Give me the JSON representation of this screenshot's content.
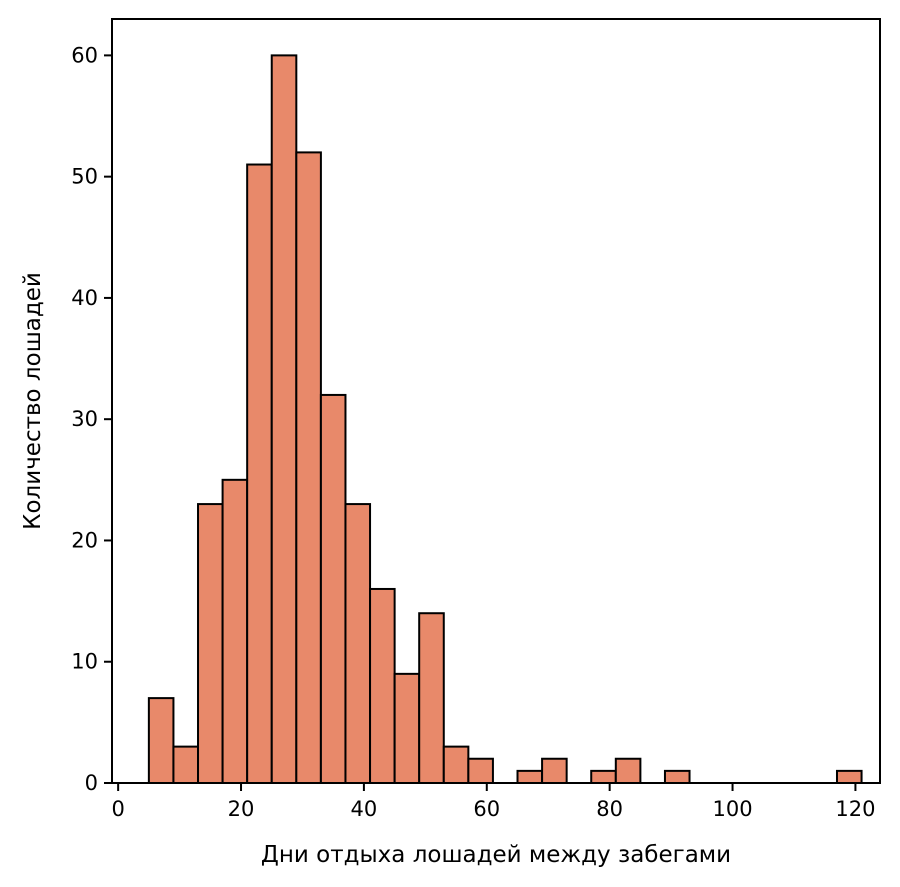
{
  "chart_data": {
    "type": "histogram",
    "title": "",
    "xlabel": "Дни отдыха лошадей между забегами",
    "ylabel": "Количество лошадей",
    "xlim": [
      -1,
      124
    ],
    "ylim": [
      0,
      63
    ],
    "xticks": [
      0,
      20,
      40,
      60,
      80,
      100,
      120
    ],
    "yticks": [
      0,
      10,
      20,
      30,
      40,
      50,
      60
    ],
    "bar_color": "#E8896A",
    "edge_color": "#000000",
    "grid": false,
    "bins": [
      {
        "x0": 5,
        "x1": 9,
        "count": 7
      },
      {
        "x0": 9,
        "x1": 13,
        "count": 3
      },
      {
        "x0": 13,
        "x1": 17,
        "count": 23
      },
      {
        "x0": 17,
        "x1": 21,
        "count": 25
      },
      {
        "x0": 21,
        "x1": 25,
        "count": 51
      },
      {
        "x0": 25,
        "x1": 29,
        "count": 60
      },
      {
        "x0": 29,
        "x1": 33,
        "count": 52
      },
      {
        "x0": 33,
        "x1": 37,
        "count": 32
      },
      {
        "x0": 37,
        "x1": 41,
        "count": 23
      },
      {
        "x0": 41,
        "x1": 45,
        "count": 16
      },
      {
        "x0": 45,
        "x1": 49,
        "count": 9
      },
      {
        "x0": 49,
        "x1": 53,
        "count": 14
      },
      {
        "x0": 53,
        "x1": 57,
        "count": 3
      },
      {
        "x0": 57,
        "x1": 61,
        "count": 2
      },
      {
        "x0": 61,
        "x1": 65,
        "count": 0
      },
      {
        "x0": 65,
        "x1": 69,
        "count": 1
      },
      {
        "x0": 69,
        "x1": 73,
        "count": 2
      },
      {
        "x0": 73,
        "x1": 77,
        "count": 0
      },
      {
        "x0": 77,
        "x1": 81,
        "count": 1
      },
      {
        "x0": 81,
        "x1": 85,
        "count": 2
      },
      {
        "x0": 85,
        "x1": 89,
        "count": 0
      },
      {
        "x0": 89,
        "x1": 93,
        "count": 1
      },
      {
        "x0": 93,
        "x1": 97,
        "count": 0
      },
      {
        "x0": 97,
        "x1": 101,
        "count": 0
      },
      {
        "x0": 101,
        "x1": 105,
        "count": 0
      },
      {
        "x0": 105,
        "x1": 109,
        "count": 0
      },
      {
        "x0": 109,
        "x1": 113,
        "count": 0
      },
      {
        "x0": 113,
        "x1": 117,
        "count": 0
      },
      {
        "x0": 117,
        "x1": 121,
        "count": 1
      }
    ]
  }
}
